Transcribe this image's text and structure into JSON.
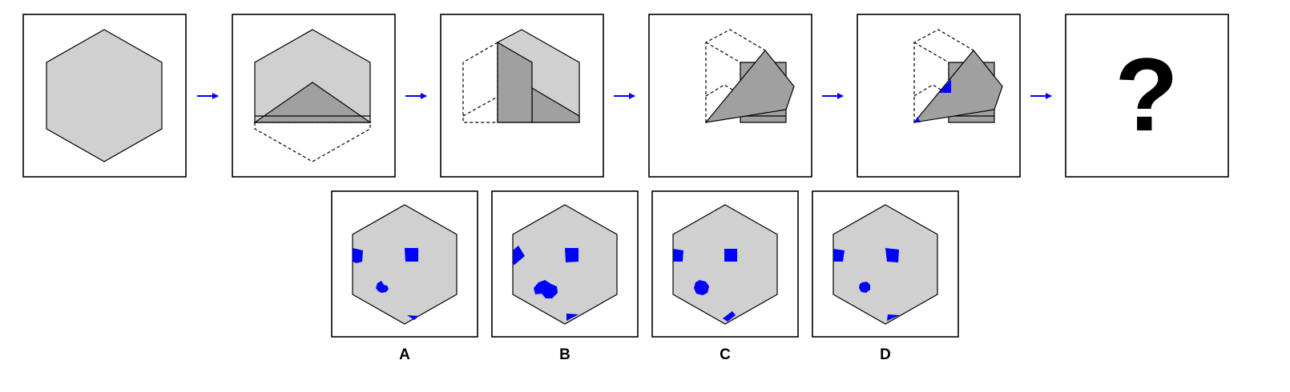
{
  "sequence": {
    "question_label": "?"
  },
  "options": [
    {
      "label": "A"
    },
    {
      "label": "B"
    },
    {
      "label": "C"
    },
    {
      "label": "D"
    }
  ],
  "colors": {
    "paper_fill": "#d0d0d0",
    "folded_fill": "#a0a0a0",
    "hole_fill": "#0000ff",
    "arrow": "#0000ff",
    "outline": "#000000"
  }
}
